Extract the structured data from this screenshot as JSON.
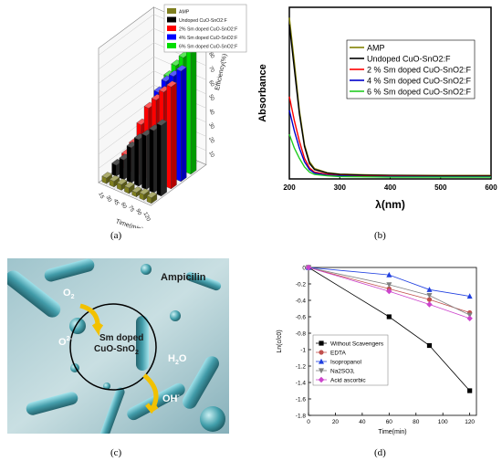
{
  "captions": {
    "a": "(a)",
    "b": "(b)",
    "c": "(c)",
    "d": "(d)"
  },
  "chart_data": [
    {
      "type": "bar",
      "title": "",
      "xlabel": "Time(min)",
      "ylabel": "Efficiency(%)",
      "zlabel": "",
      "categories": [
        "15",
        "30",
        "45",
        "60",
        "75",
        "90",
        "120"
      ],
      "yticks": [
        "10",
        "20",
        "30",
        "40",
        "50",
        "60",
        "70",
        "80",
        "90"
      ],
      "series": [
        {
          "name": "AMP",
          "color": "#7f7f1f",
          "values": [
            4,
            4,
            4,
            4,
            3,
            4,
            4
          ]
        },
        {
          "name": "Undoped CuO-SnO2:F",
          "color": "#000000",
          "values": [
            8,
            14,
            25,
            33,
            38,
            44,
            50
          ]
        },
        {
          "name": "2% Sm doped CuO-SnO2:F",
          "color": "#ff0000",
          "values": [
            10,
            20,
            36,
            50,
            58,
            66,
            72
          ]
        },
        {
          "name": "4% Sm doped CuO-SnO2:F",
          "color": "#0000ff",
          "values": [
            12,
            23,
            40,
            56,
            66,
            72,
            78
          ]
        },
        {
          "name": "6% Sm doped CuO-SnO2:F",
          "color": "#00dd00",
          "values": [
            14,
            26,
            44,
            62,
            72,
            80,
            86
          ]
        }
      ],
      "legend": "top-right",
      "grid": true
    },
    {
      "type": "line",
      "title": "",
      "xlabel": "λ(nm)",
      "ylabel": "Absorbance",
      "xlim": [
        200,
        600
      ],
      "xticks": [
        "200",
        "300",
        "400",
        "500",
        "600"
      ],
      "x": [
        200,
        210,
        220,
        230,
        240,
        250,
        275,
        300,
        350,
        400,
        500,
        600
      ],
      "series": [
        {
          "name": "AMP",
          "color": "#808000",
          "values": [
            4.7,
            3.4,
            2.0,
            1.0,
            0.5,
            0.3,
            0.18,
            0.14,
            0.12,
            0.11,
            0.1,
            0.1
          ]
        },
        {
          "name": "Undoped CuO-SnO2:F",
          "color": "#000000",
          "values": [
            4.5,
            3.2,
            1.9,
            0.95,
            0.45,
            0.27,
            0.17,
            0.13,
            0.11,
            0.1,
            0.09,
            0.09
          ]
        },
        {
          "name": "2 % Sm doped CuO-SnO2:F",
          "color": "#ff0000",
          "values": [
            2.4,
            1.7,
            1.1,
            0.6,
            0.32,
            0.2,
            0.13,
            0.1,
            0.08,
            0.08,
            0.07,
            0.07
          ]
        },
        {
          "name": "4 % Sm doped CuO-SnO2:F",
          "color": "#0000cc",
          "values": [
            2.0,
            1.4,
            0.9,
            0.5,
            0.27,
            0.17,
            0.11,
            0.09,
            0.07,
            0.07,
            0.06,
            0.06
          ]
        },
        {
          "name": "6 % Sm doped CuO-SnO2:F",
          "color": "#22cc22",
          "values": [
            1.3,
            0.9,
            0.6,
            0.35,
            0.2,
            0.13,
            0.09,
            0.07,
            0.06,
            0.05,
            0.05,
            0.05
          ]
        }
      ],
      "ylim": [
        0,
        5
      ],
      "legend": "top-right",
      "grid": false
    },
    {
      "type": "line",
      "title": "",
      "xlabel": "Time(min)",
      "ylabel": "Ln(c/c0)",
      "xlim": [
        0,
        125
      ],
      "ylim": [
        -1.8,
        0
      ],
      "xticks": [
        "0",
        "20",
        "40",
        "60",
        "80",
        "100",
        "120"
      ],
      "yticks": [
        "0",
        "-0.2",
        "-0.4",
        "-0.6",
        "-0.8",
        "-1",
        "-1.2",
        "-1.4",
        "-1.6",
        "-1.8"
      ],
      "x": [
        0,
        60,
        90,
        120
      ],
      "series": [
        {
          "name": "Without Scavengers",
          "color": "#000000",
          "marker": "square",
          "values": [
            0,
            -0.6,
            -0.95,
            -1.5
          ]
        },
        {
          "name": "EDTA",
          "color": "#c0504d",
          "marker": "circle",
          "values": [
            0,
            -0.26,
            -0.39,
            -0.55
          ]
        },
        {
          "name": "Isopropanol",
          "color": "#1f3fe0",
          "marker": "triangle",
          "values": [
            0,
            -0.09,
            -0.27,
            -0.35
          ]
        },
        {
          "name": "Na2SO3,",
          "color": "#808080",
          "marker": "triangle-down",
          "values": [
            0,
            -0.21,
            -0.34,
            -0.58
          ]
        },
        {
          "name": "Acid ascorbic",
          "color": "#cc44cc",
          "marker": "diamond",
          "values": [
            0,
            -0.29,
            -0.45,
            -0.62
          ]
        }
      ],
      "legend": "bottom-left",
      "grid": false
    }
  ],
  "illustration": {
    "title": "Ampicilin",
    "center_line1": "Sm doped",
    "center_line2": "CuO-SnO",
    "center_sub": "2",
    "o2_base": "O",
    "o2_sub": "2",
    "o2r_base": "O",
    "o2r_sup": "2-",
    "h2o_base": "H",
    "h2o_sub": "2",
    "h2o_tail": "O",
    "oh_base": "OH",
    "oh_sup": "-"
  }
}
